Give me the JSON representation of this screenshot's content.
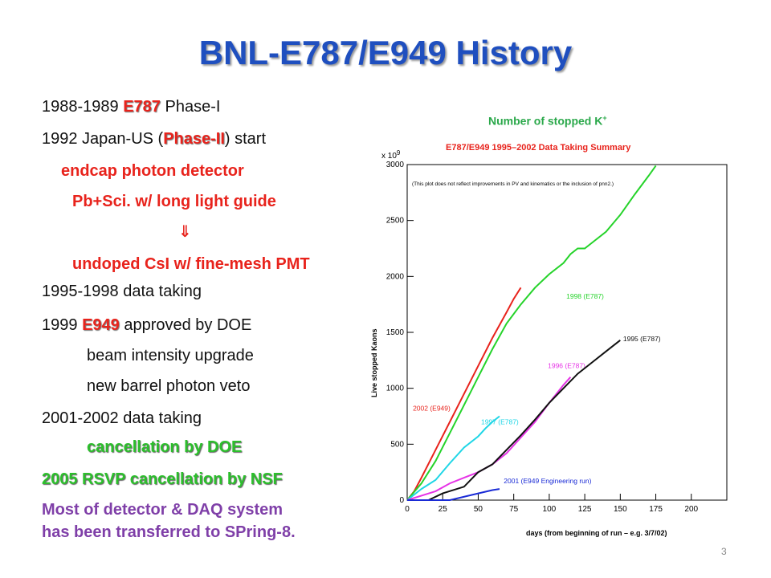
{
  "title": "BNL-E787/E949 History",
  "left": {
    "l1": {
      "year": "1988-1989",
      "tag": "E787",
      "rest": "Phase-I"
    },
    "l2": {
      "pre": "1992 Japan-US (",
      "tag": "Phase-II",
      "post": ") start"
    },
    "l3": "endcap photon detector",
    "l4": "Pb+Sci. w/ long light guide",
    "arrow": "⇓",
    "l5": "undoped CsI w/ fine-mesh PMT",
    "l6": "1995-1998 data taking",
    "l7": {
      "year": "1999",
      "tag": "E949",
      "rest": "approved by DOE"
    },
    "l8": "beam intensity upgrade",
    "l9": "new barrel photon veto",
    "l10": "2001-2002 data taking",
    "l11": "cancellation by DOE",
    "l12": "2005 RSVP cancellation by NSF",
    "l13a": "Most of detector & DAQ system",
    "l13b": "has been transferred to SPring-8."
  },
  "plot_caption": "Number of stopped K",
  "plot_caption_sup": "+",
  "page_number": "3",
  "colors": {
    "title": "#1f4fbf",
    "red": "#e8231c",
    "green": "#2cbf2c",
    "purple": "#7f3fa8"
  },
  "chart_data": {
    "type": "line",
    "title": "E787/E949 1995–2002 Data Taking Summary",
    "xlabel": "days (from beginning of run – e.g. 3/7/02)",
    "ylabel": "Live stopped Kaons",
    "y_multiplier_label": "x 10",
    "y_multiplier_exp": "9",
    "note": "(This plot does not reflect improvements in PV and kinematics or the inclusion of pnn2.)",
    "xlim": [
      0,
      225
    ],
    "ylim": [
      0,
      3000
    ],
    "xticks": [
      0,
      25,
      50,
      75,
      100,
      125,
      150,
      175,
      200
    ],
    "yticks": [
      0,
      500,
      1000,
      1500,
      2000,
      2500,
      3000
    ],
    "series": [
      {
        "name": "2002 (E949)",
        "color": "#e8231c",
        "x": [
          0,
          5,
          10,
          20,
          30,
          40,
          50,
          60,
          70,
          75,
          80
        ],
        "y": [
          0,
          80,
          200,
          450,
          700,
          950,
          1200,
          1450,
          1680,
          1800,
          1900
        ],
        "label_x": 4,
        "label_y": 800
      },
      {
        "name": "1998 (E787)",
        "color": "#25d32a",
        "x": [
          0,
          10,
          20,
          30,
          40,
          50,
          60,
          70,
          80,
          90,
          100,
          110,
          115,
          120,
          125,
          130,
          140,
          150,
          160,
          170,
          175
        ],
        "y": [
          0,
          150,
          350,
          600,
          850,
          1100,
          1350,
          1580,
          1750,
          1900,
          2020,
          2120,
          2200,
          2250,
          2250,
          2300,
          2400,
          2550,
          2730,
          2900,
          2990
        ],
        "label_x": 112,
        "label_y": 1800
      },
      {
        "name": "1997 (E787)",
        "color": "#1fd6e6",
        "x": [
          0,
          10,
          20,
          30,
          40,
          50,
          55,
          60,
          65
        ],
        "y": [
          0,
          100,
          180,
          330,
          470,
          570,
          640,
          700,
          750
        ],
        "label_x": 52,
        "label_y": 680
      },
      {
        "name": "1996 (E787)",
        "color": "#e633e6",
        "x": [
          0,
          20,
          30,
          40,
          50,
          60,
          70,
          80,
          90,
          100,
          110,
          115
        ],
        "y": [
          0,
          80,
          150,
          200,
          250,
          320,
          420,
          560,
          700,
          870,
          1030,
          1100
        ],
        "label_x": 99,
        "label_y": 1180
      },
      {
        "name": "1995 (E787)",
        "color": "#111111",
        "x": [
          15,
          25,
          40,
          50,
          60,
          70,
          80,
          90,
          100,
          110,
          120,
          130,
          140,
          145,
          150
        ],
        "y": [
          0,
          60,
          120,
          250,
          320,
          450,
          580,
          720,
          870,
          1000,
          1130,
          1230,
          1330,
          1380,
          1430
        ],
        "label_x": 152,
        "label_y": 1420
      },
      {
        "name": "2001 (E949 Engineering run)",
        "color": "#1a2bd6",
        "x": [
          0,
          30,
          50,
          60,
          65
        ],
        "y": [
          0,
          0,
          60,
          90,
          100
        ],
        "label_x": 68,
        "label_y": 150
      }
    ]
  }
}
